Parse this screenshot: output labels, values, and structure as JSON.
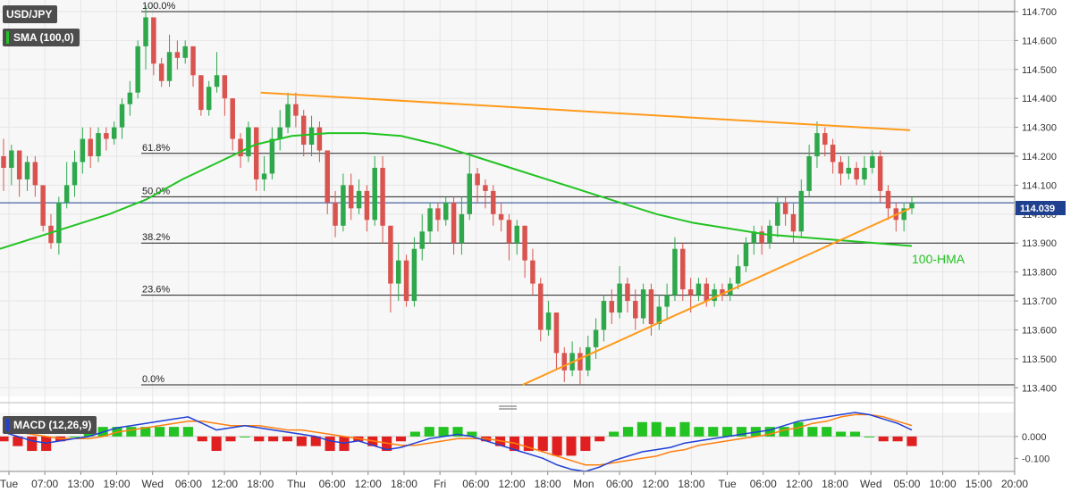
{
  "instrument": {
    "symbol": "USD/JPY",
    "indicator": "SMA (100,0)",
    "macd_label": "MACD (12,26,9)"
  },
  "colors": {
    "up": "#2ea84b",
    "down": "#d9534f",
    "hma": "#22c322",
    "trendline": "#ff9a1a",
    "macd_line": "#1f3fd6",
    "signal_line": "#ff7f0e",
    "hist_pos": "#22c322",
    "hist_neg": "#e02020",
    "price_line": "#1f3f8f",
    "price_tag_bg": "#1f3f8f",
    "up_tag": "#22c322",
    "down_tag": "#e02020"
  },
  "last_price": "114.039",
  "hma_label": "100-HMA",
  "price_axis": {
    "ylim": [
      113.37,
      114.74
    ],
    "ticks": [
      "114.700",
      "114.600",
      "114.500",
      "114.400",
      "114.300",
      "114.200",
      "114.100",
      "114.000",
      "113.900",
      "113.800",
      "113.700",
      "113.600",
      "113.500",
      "113.400"
    ]
  },
  "macd_axis": {
    "ylim": [
      -0.16,
      0.11
    ],
    "ticks": [
      "0.000",
      "-0.100"
    ]
  },
  "time_axis": {
    "labels": [
      "Tue",
      "07:00",
      "13:00",
      "19:00",
      "Wed",
      "06:00",
      "12:00",
      "18:00",
      "Thu",
      "06:00",
      "12:00",
      "18:00",
      "Fri",
      "06:00",
      "12:00",
      "18:00",
      "Mon",
      "06:00",
      "12:00",
      "18:00",
      "Tue",
      "06:00",
      "12:00",
      "18:00",
      "Wed",
      "05:00",
      "10:00",
      "15:00",
      "20:00"
    ]
  },
  "chart_data": {
    "type": "candlestick",
    "fibonacci": [
      {
        "label": "100.0%",
        "price": 114.7
      },
      {
        "label": "61.8%",
        "price": 114.21
      },
      {
        "label": "50.0%",
        "price": 114.06
      },
      {
        "label": "38.2%",
        "price": 113.9
      },
      {
        "label": "23.6%",
        "price": 113.72
      },
      {
        "label": "0.0%",
        "price": 113.41
      }
    ],
    "candles": [
      [
        114.2,
        114.16,
        114.26,
        114.08
      ],
      [
        114.16,
        114.22,
        114.24,
        114.1
      ],
      [
        114.22,
        114.12,
        114.22,
        114.06
      ],
      [
        114.12,
        114.18,
        114.2,
        114.08
      ],
      [
        114.18,
        114.1,
        114.2,
        114.06
      ],
      [
        114.1,
        113.96,
        114.1,
        113.94
      ],
      [
        113.96,
        113.9,
        114.0,
        113.88
      ],
      [
        113.9,
        114.04,
        114.06,
        113.86
      ],
      [
        114.04,
        114.1,
        114.18,
        114.02
      ],
      [
        114.1,
        114.18,
        114.22,
        114.06
      ],
      [
        114.18,
        114.26,
        114.3,
        114.14
      ],
      [
        114.26,
        114.2,
        114.3,
        114.16
      ],
      [
        114.2,
        114.28,
        114.3,
        114.18
      ],
      [
        114.28,
        114.26,
        114.3,
        114.22
      ],
      [
        114.26,
        114.3,
        114.32,
        114.24
      ],
      [
        114.3,
        114.38,
        114.4,
        114.26
      ],
      [
        114.38,
        114.42,
        114.46,
        114.34
      ],
      [
        114.42,
        114.58,
        114.6,
        114.4
      ],
      [
        114.58,
        114.68,
        114.72,
        114.5
      ],
      [
        114.68,
        114.52,
        114.66,
        114.48
      ],
      [
        114.52,
        114.46,
        114.54,
        114.44
      ],
      [
        114.46,
        114.56,
        114.62,
        114.44
      ],
      [
        114.56,
        114.54,
        114.6,
        114.5
      ],
      [
        114.54,
        114.58,
        114.6,
        114.52
      ],
      [
        114.58,
        114.48,
        114.58,
        114.44
      ],
      [
        114.48,
        114.36,
        114.48,
        114.34
      ],
      [
        114.36,
        114.44,
        114.46,
        114.34
      ],
      [
        114.44,
        114.48,
        114.56,
        114.42
      ],
      [
        114.48,
        114.4,
        114.48,
        114.34
      ],
      [
        114.4,
        114.26,
        114.4,
        114.22
      ],
      [
        114.26,
        114.2,
        114.28,
        114.16
      ],
      [
        114.2,
        114.3,
        114.32,
        114.18
      ],
      [
        114.3,
        114.12,
        114.3,
        114.08
      ],
      [
        114.12,
        114.14,
        114.2,
        114.08
      ],
      [
        114.14,
        114.26,
        114.3,
        114.12
      ],
      [
        114.26,
        114.3,
        114.36,
        114.22
      ],
      [
        114.3,
        114.38,
        114.42,
        114.28
      ],
      [
        114.38,
        114.34,
        114.42,
        114.3
      ],
      [
        114.34,
        114.24,
        114.36,
        114.2
      ],
      [
        114.24,
        114.3,
        114.34,
        114.2
      ],
      [
        114.3,
        114.22,
        114.32,
        114.18
      ],
      [
        114.22,
        114.04,
        114.22,
        114.0
      ],
      [
        114.04,
        113.96,
        114.08,
        113.92
      ],
      [
        113.96,
        114.1,
        114.14,
        113.94
      ],
      [
        114.1,
        114.02,
        114.14,
        113.98
      ],
      [
        114.02,
        114.08,
        114.12,
        114.0
      ],
      [
        114.08,
        113.98,
        114.1,
        113.94
      ],
      [
        113.98,
        114.16,
        114.2,
        113.96
      ],
      [
        114.16,
        113.96,
        114.2,
        113.9
      ],
      [
        113.96,
        113.76,
        113.96,
        113.66
      ],
      [
        113.76,
        113.84,
        113.9,
        113.7
      ],
      [
        113.84,
        113.7,
        113.86,
        113.68
      ],
      [
        113.7,
        113.88,
        113.92,
        113.68
      ],
      [
        113.88,
        113.94,
        114.0,
        113.84
      ],
      [
        113.94,
        114.02,
        114.04,
        113.9
      ],
      [
        114.02,
        113.98,
        114.04,
        113.94
      ],
      [
        113.98,
        114.04,
        114.06,
        113.96
      ],
      [
        114.04,
        113.9,
        114.06,
        113.86
      ],
      [
        113.9,
        114.0,
        114.06,
        113.86
      ],
      [
        114.0,
        114.14,
        114.2,
        113.98
      ],
      [
        114.14,
        114.1,
        114.16,
        114.04
      ],
      [
        114.1,
        114.08,
        114.12,
        114.02
      ],
      [
        114.08,
        114.0,
        114.1,
        113.96
      ],
      [
        114.0,
        113.98,
        114.04,
        113.94
      ],
      [
        113.98,
        113.9,
        114.0,
        113.84
      ],
      [
        113.9,
        113.96,
        113.98,
        113.86
      ],
      [
        113.96,
        113.84,
        113.96,
        113.78
      ],
      [
        113.84,
        113.76,
        113.88,
        113.72
      ],
      [
        113.76,
        113.6,
        113.78,
        113.56
      ],
      [
        113.6,
        113.66,
        113.7,
        113.58
      ],
      [
        113.66,
        113.52,
        113.66,
        113.46
      ],
      [
        113.52,
        113.46,
        113.54,
        113.42
      ],
      [
        113.46,
        113.52,
        113.56,
        113.44
      ],
      [
        113.52,
        113.46,
        113.54,
        113.41
      ],
      [
        113.46,
        113.54,
        113.58,
        113.44
      ],
      [
        113.54,
        113.6,
        113.64,
        113.5
      ],
      [
        113.6,
        113.7,
        113.72,
        113.56
      ],
      [
        113.7,
        113.66,
        113.74,
        113.62
      ],
      [
        113.66,
        113.76,
        113.82,
        113.64
      ],
      [
        113.76,
        113.7,
        113.78,
        113.66
      ],
      [
        113.7,
        113.64,
        113.74,
        113.6
      ],
      [
        113.64,
        113.74,
        113.76,
        113.62
      ],
      [
        113.74,
        113.62,
        113.76,
        113.58
      ],
      [
        113.62,
        113.68,
        113.72,
        113.6
      ],
      [
        113.68,
        113.72,
        113.76,
        113.64
      ],
      [
        113.72,
        113.88,
        113.92,
        113.7
      ],
      [
        113.88,
        113.74,
        113.9,
        113.7
      ],
      [
        113.74,
        113.72,
        113.78,
        113.66
      ],
      [
        113.72,
        113.76,
        113.78,
        113.7
      ],
      [
        113.76,
        113.7,
        113.78,
        113.68
      ],
      [
        113.7,
        113.74,
        113.76,
        113.68
      ],
      [
        113.74,
        113.72,
        113.76,
        113.7
      ],
      [
        113.72,
        113.76,
        113.78,
        113.7
      ],
      [
        113.76,
        113.82,
        113.86,
        113.74
      ],
      [
        113.82,
        113.9,
        113.92,
        113.8
      ],
      [
        113.9,
        113.94,
        113.96,
        113.86
      ],
      [
        113.94,
        113.9,
        113.96,
        113.86
      ],
      [
        113.9,
        113.96,
        113.98,
        113.88
      ],
      [
        113.96,
        114.04,
        114.06,
        113.92
      ],
      [
        114.04,
        114.0,
        114.06,
        113.96
      ],
      [
        114.0,
        113.94,
        114.04,
        113.9
      ],
      [
        113.94,
        114.08,
        114.12,
        113.92
      ],
      [
        114.08,
        114.2,
        114.24,
        114.06
      ],
      [
        114.2,
        114.28,
        114.32,
        114.16
      ],
      [
        114.28,
        114.24,
        114.3,
        114.2
      ],
      [
        114.24,
        114.18,
        114.26,
        114.14
      ],
      [
        114.18,
        114.14,
        114.2,
        114.1
      ],
      [
        114.14,
        114.16,
        114.2,
        114.12
      ],
      [
        114.16,
        114.12,
        114.18,
        114.1
      ],
      [
        114.12,
        114.16,
        114.2,
        114.1
      ],
      [
        114.16,
        114.2,
        114.22,
        114.14
      ],
      [
        114.2,
        114.08,
        114.22,
        114.04
      ],
      [
        114.08,
        114.02,
        114.1,
        113.98
      ],
      [
        114.02,
        113.98,
        114.04,
        113.94
      ],
      [
        113.98,
        114.02,
        114.04,
        113.94
      ],
      [
        114.02,
        114.04,
        114.06,
        114.0
      ]
    ],
    "hma_100": [
      113.88,
      113.92,
      113.96,
      114.0,
      114.05,
      114.12,
      114.18,
      114.24,
      114.27,
      114.28,
      114.28,
      114.27,
      114.24,
      114.2,
      114.16,
      114.12,
      114.08,
      114.04,
      114.0,
      113.97,
      113.95,
      113.93,
      113.92,
      113.91,
      113.9,
      113.89
    ],
    "trendlines": [
      {
        "from": [
          0.257,
          114.42
        ],
        "to": [
          0.897,
          114.29
        ]
      },
      {
        "from": [
          0.515,
          113.41
        ],
        "to": [
          0.897,
          114.02
        ]
      }
    ],
    "macd": [
      0.02,
      0.0,
      -0.02,
      -0.03,
      -0.02,
      -0.01,
      0.0,
      0.02,
      0.04,
      0.05,
      0.06,
      0.07,
      0.08,
      0.09,
      0.06,
      0.03,
      0.04,
      0.05,
      0.04,
      0.03,
      0.02,
      0.01,
      0.0,
      -0.02,
      -0.03,
      -0.02,
      -0.04,
      -0.06,
      -0.05,
      -0.03,
      -0.01,
      0.0,
      0.01,
      0.0,
      -0.02,
      -0.04,
      -0.06,
      -0.08,
      -0.1,
      -0.13,
      -0.15,
      -0.16,
      -0.14,
      -0.11,
      -0.09,
      -0.07,
      -0.06,
      -0.05,
      -0.03,
      -0.02,
      -0.01,
      0.0,
      0.01,
      0.02,
      0.03,
      0.05,
      0.07,
      0.08,
      0.09,
      0.1,
      0.11,
      0.1,
      0.08,
      0.06,
      0.03
    ],
    "signal": [
      0.03,
      0.02,
      0.01,
      0.0,
      -0.01,
      -0.01,
      -0.01,
      0.0,
      0.02,
      0.03,
      0.04,
      0.05,
      0.06,
      0.07,
      0.07,
      0.06,
      0.05,
      0.05,
      0.05,
      0.04,
      0.03,
      0.03,
      0.02,
      0.01,
      0.0,
      -0.01,
      -0.02,
      -0.03,
      -0.04,
      -0.04,
      -0.03,
      -0.02,
      -0.01,
      -0.01,
      -0.01,
      -0.02,
      -0.03,
      -0.05,
      -0.07,
      -0.09,
      -0.11,
      -0.13,
      -0.13,
      -0.12,
      -0.11,
      -0.1,
      -0.09,
      -0.07,
      -0.06,
      -0.04,
      -0.03,
      -0.02,
      -0.01,
      0.0,
      0.01,
      0.03,
      0.04,
      0.06,
      0.07,
      0.09,
      0.1,
      0.1,
      0.09,
      0.07,
      0.05
    ],
    "xlabel": "",
    "ylabel": ""
  }
}
